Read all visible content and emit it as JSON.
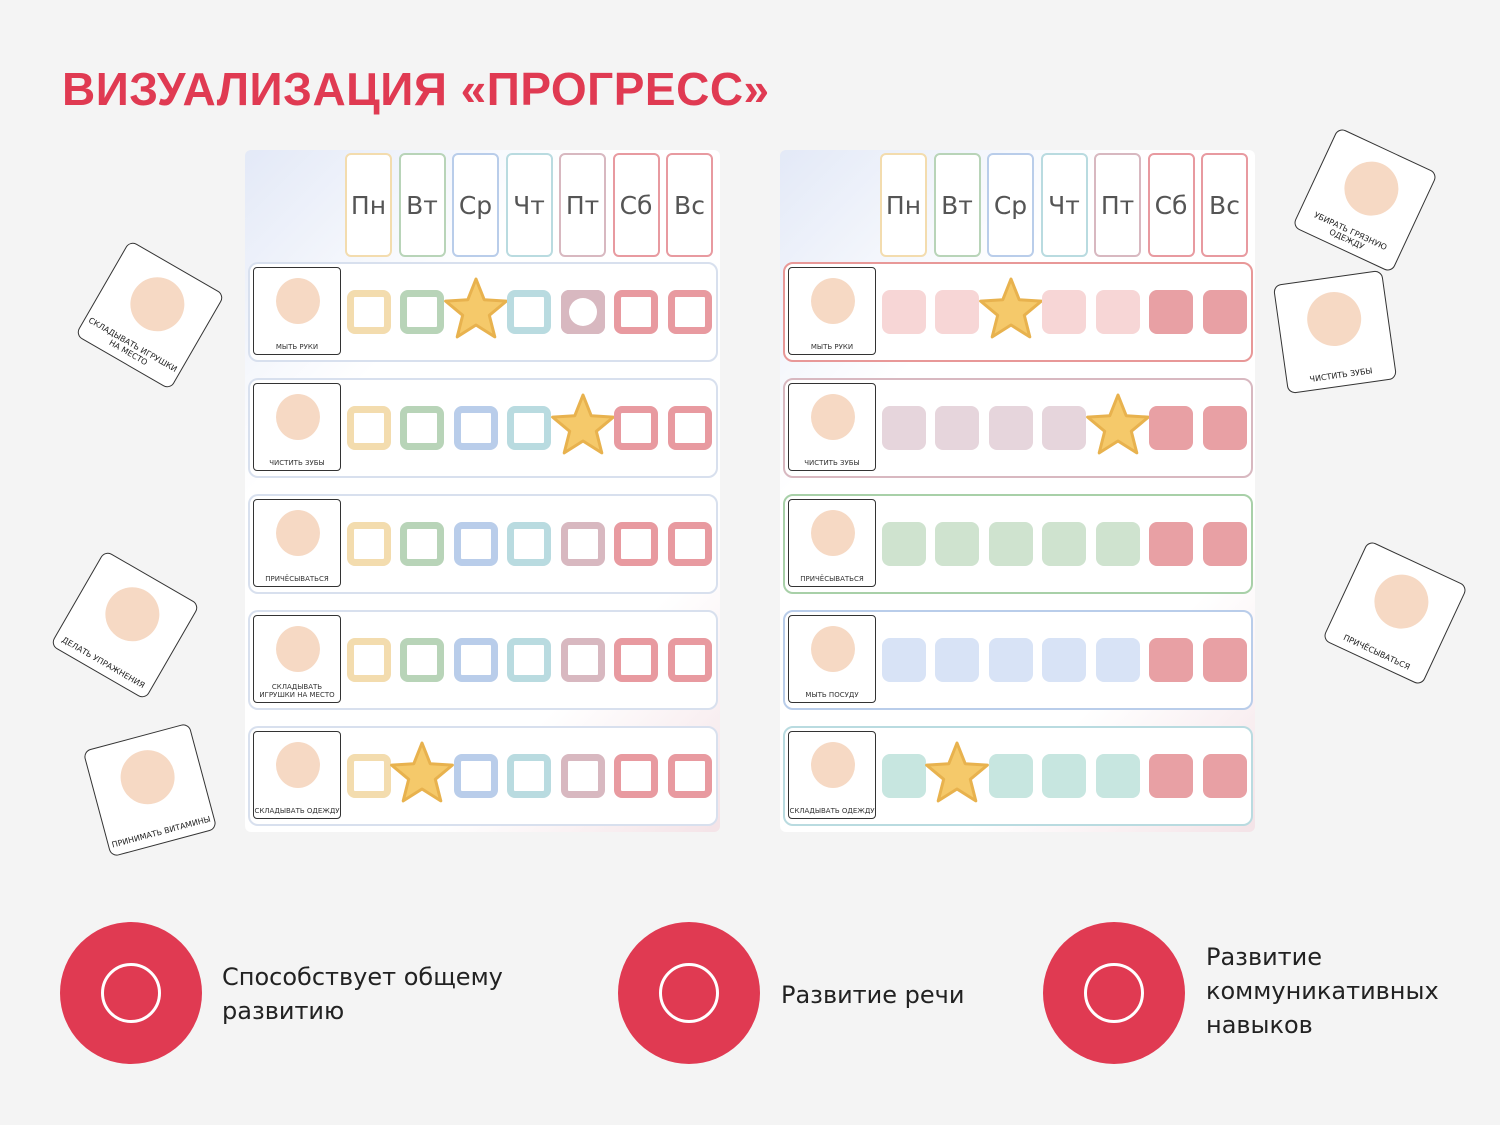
{
  "header": {
    "title": "ВИЗУАЛИЗАЦИЯ «ПРОГРЕСС»"
  },
  "boards": [
    {
      "days": [
        "Пн",
        "Вт",
        "Ср",
        "Чт",
        "Пт",
        "Сб",
        "Вс"
      ],
      "rows": [
        "МЫТЬ РУКИ",
        "ЧИСТИТЬ ЗУБЫ",
        "ПРИЧЁСЫВАТЬСЯ",
        "СКЛАДЫВАТЬ ИГРУШКИ НА МЕСТО",
        "СКЛАДЫВАТЬ ОДЕЖДУ"
      ]
    },
    {
      "days": [
        "Пн",
        "Вт",
        "Ср",
        "Чт",
        "Пт",
        "Сб",
        "Вс"
      ],
      "rows": [
        "МЫТЬ РУКИ",
        "ЧИСТИТЬ ЗУБЫ",
        "ПРИЧЁСЫВАТЬСЯ",
        "МЫТЬ ПОСУДУ",
        "СКЛАДЫВАТЬ ОДЕЖДУ"
      ]
    }
  ],
  "cards": [
    "СКЛАДЫВАТЬ ИГРУШКИ НА МЕСТО",
    "ДЕЛАТЬ УПРАЖНЕНИЯ",
    "ПРИНИМАТЬ ВИТАМИНЫ",
    "УБИРАТЬ ГРЯЗНУЮ ОДЕЖДУ",
    "ЧИСТИТЬ ЗУБЫ",
    "ПРИЧЁСЫВАТЬСЯ"
  ],
  "features": [
    "Способствует общему развитию",
    "Развитие речи",
    "Развитие коммуникативных навыков"
  ]
}
